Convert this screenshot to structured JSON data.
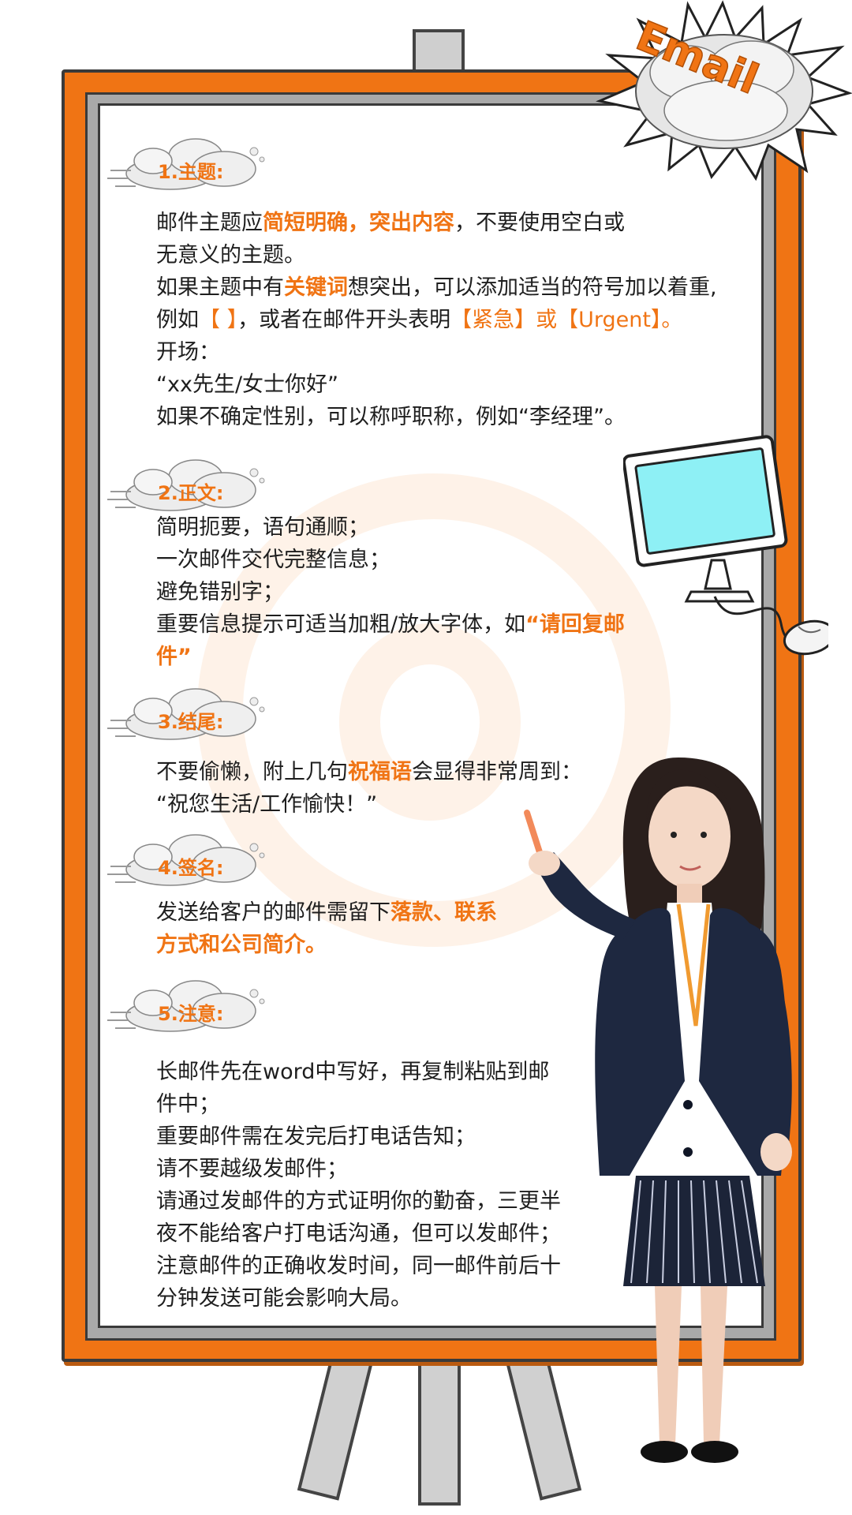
{
  "badge": {
    "label": "Email"
  },
  "sections": [
    {
      "heading": "1.主题:",
      "lines": [
        [
          {
            "t": "邮件主题应"
          },
          {
            "t": "简短明确，突出内容",
            "s": "hl"
          },
          {
            "t": "，不要使用空白或"
          }
        ],
        [
          {
            "t": "无意义的主题。"
          }
        ],
        [
          {
            "t": "如果主题中有"
          },
          {
            "t": "关键词",
            "s": "hl"
          },
          {
            "t": "想突出，可以添加适当的符号加以着重,"
          }
        ],
        [
          {
            "t": "例如"
          },
          {
            "t": "【 】",
            "s": "bk"
          },
          {
            "t": "，或者在邮件开头表明"
          },
          {
            "t": "【紧急】或【Urgent】。",
            "s": "bk"
          }
        ],
        [
          {
            "t": "开场："
          }
        ],
        [
          {
            "t": "“xx先生/女士你好”"
          }
        ],
        [
          {
            "t": "如果不确定性别，可以称呼职称，例如“李经理”。"
          }
        ]
      ]
    },
    {
      "heading": "2.正文:",
      "lines": [
        [
          {
            "t": "简明扼要，语句通顺；"
          }
        ],
        [
          {
            "t": "一次邮件交代完整信息；"
          }
        ],
        [
          {
            "t": "避免错别字；"
          }
        ],
        [
          {
            "t": "重要信息提示可适当加粗/放大字体，如"
          },
          {
            "t": "“请回复邮",
            "s": "hl"
          }
        ],
        [
          {
            "t": "件”",
            "s": "hl"
          }
        ]
      ]
    },
    {
      "heading": "3.结尾:",
      "lines": [
        [
          {
            "t": "不要偷懒，附上几句"
          },
          {
            "t": "祝福语",
            "s": "hl"
          },
          {
            "t": "会显得非常周到："
          }
        ],
        [
          {
            "t": "“祝您生活/工作愉快！”"
          }
        ]
      ]
    },
    {
      "heading": "4.签名:",
      "lines": [
        [
          {
            "t": "发送给客户的邮件需留下"
          },
          {
            "t": "落款、联系",
            "s": "hl"
          }
        ],
        [
          {
            "t": "方式和公司简介。",
            "s": "hl"
          }
        ]
      ]
    },
    {
      "heading": "5.注意:",
      "lines": [
        [
          {
            "t": "长邮件先在word中写好，再复制粘贴到邮"
          }
        ],
        [
          {
            "t": "件中；"
          }
        ],
        [
          {
            "t": "重要邮件需在发完后打电话告知；"
          }
        ],
        [
          {
            "t": "请不要越级发邮件；"
          }
        ],
        [
          {
            "t": "请通过发邮件的方式证明你的勤奋，三更半"
          }
        ],
        [
          {
            "t": "夜不能给客户打电话沟通，但可以发邮件；"
          }
        ],
        [
          {
            "t": "注意邮件的正确收发时间，同一邮件前后十"
          }
        ],
        [
          {
            "t": "分钟发送可能会影响大局。"
          }
        ]
      ]
    }
  ],
  "colors": {
    "accent": "#f07414",
    "text": "#1e1e1e",
    "screen": "#8ef0f5"
  },
  "icons": [
    "email-burst-icon",
    "cloud-icon",
    "computer-monitor-icon",
    "mouse-icon"
  ]
}
